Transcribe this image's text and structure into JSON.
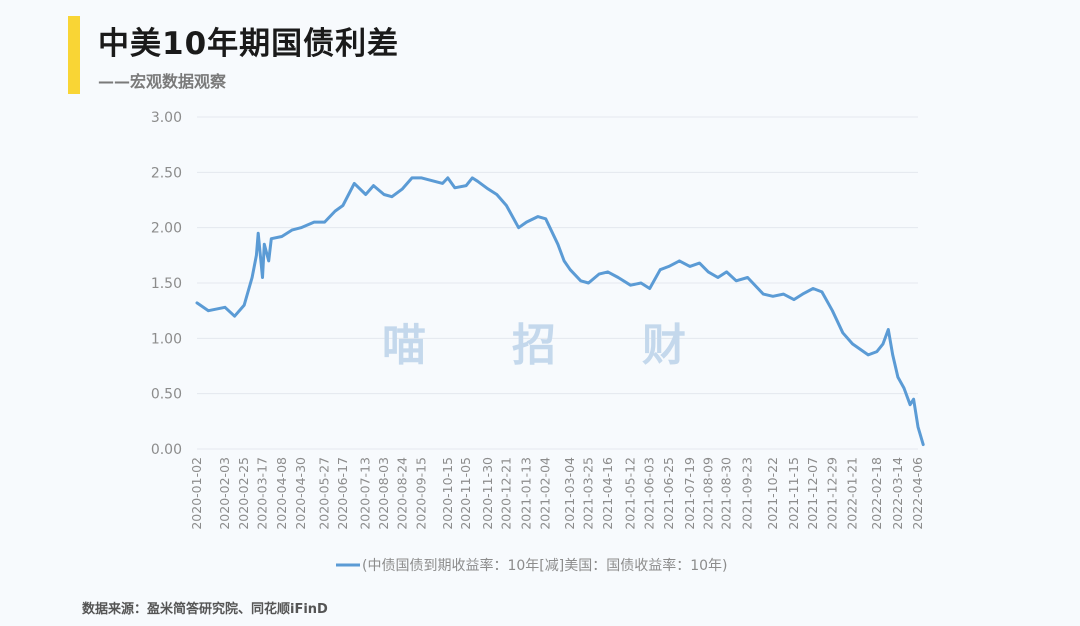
{
  "header": {
    "title": "中美10年期国债利差",
    "subtitle": "——宏观数据观察"
  },
  "watermark": [
    "喵",
    "招",
    "财"
  ],
  "footer": {
    "source": "数据来源：盈米简答研究院、同花顺iFinD"
  },
  "colors": {
    "accent": "#f9d535",
    "series": "#5b9bd5",
    "grid": "#e4e8ee",
    "watermark": "#c4d8ec"
  },
  "chart_data": {
    "type": "line",
    "title": "中美10年期国债利差",
    "ylim": [
      0,
      3
    ],
    "yticks": [
      "0.00",
      "0.50",
      "1.00",
      "1.50",
      "2.00",
      "2.50",
      "3.00"
    ],
    "xtick_labels": [
      "2020-01-02",
      "2020-02-03",
      "2020-02-25",
      "2020-03-17",
      "2020-04-08",
      "2020-04-30",
      "2020-05-27",
      "2020-06-17",
      "2020-07-13",
      "2020-08-03",
      "2020-08-24",
      "2020-09-15",
      "2020-10-15",
      "2020-11-05",
      "2020-11-30",
      "2020-12-21",
      "2021-01-13",
      "2021-02-04",
      "2021-03-04",
      "2021-03-25",
      "2021-04-16",
      "2021-05-12",
      "2021-06-03",
      "2021-06-25",
      "2021-07-19",
      "2021-08-09",
      "2021-08-30",
      "2021-09-23",
      "2021-10-22",
      "2021-11-15",
      "2021-12-07",
      "2021-12-29",
      "2022-01-21",
      "2022-02-18",
      "2022-03-14",
      "2022-04-06"
    ],
    "grid": true,
    "legend_position": "bottom-center",
    "series": [
      {
        "name": "(中债国债到期收益率：10年[减]美国：国债收益率：10年)",
        "color": "#5b9bd5",
        "x": [
          "2020-01-02",
          "2020-01-15",
          "2020-02-03",
          "2020-02-14",
          "2020-02-25",
          "2020-03-05",
          "2020-03-10",
          "2020-03-12",
          "2020-03-17",
          "2020-03-19",
          "2020-03-24",
          "2020-03-27",
          "2020-04-08",
          "2020-04-20",
          "2020-04-30",
          "2020-05-15",
          "2020-05-27",
          "2020-06-08",
          "2020-06-17",
          "2020-06-30",
          "2020-07-13",
          "2020-07-22",
          "2020-08-03",
          "2020-08-12",
          "2020-08-24",
          "2020-09-04",
          "2020-09-15",
          "2020-10-09",
          "2020-10-15",
          "2020-10-23",
          "2020-11-05",
          "2020-11-12",
          "2020-11-18",
          "2020-11-30",
          "2020-12-10",
          "2020-12-21",
          "2021-01-04",
          "2021-01-13",
          "2021-01-26",
          "2021-02-04",
          "2021-02-18",
          "2021-02-25",
          "2021-03-04",
          "2021-03-16",
          "2021-03-25",
          "2021-04-06",
          "2021-04-16",
          "2021-04-28",
          "2021-05-12",
          "2021-05-24",
          "2021-06-03",
          "2021-06-15",
          "2021-06-25",
          "2021-07-07",
          "2021-07-19",
          "2021-07-30",
          "2021-08-09",
          "2021-08-20",
          "2021-08-30",
          "2021-09-10",
          "2021-09-23",
          "2021-10-11",
          "2021-10-22",
          "2021-11-03",
          "2021-11-15",
          "2021-11-25",
          "2021-12-07",
          "2021-12-17",
          "2021-12-29",
          "2022-01-10",
          "2022-01-21",
          "2022-02-08",
          "2022-02-18",
          "2022-02-25",
          "2022-03-03",
          "2022-03-08",
          "2022-03-14",
          "2022-03-21",
          "2022-03-28",
          "2022-04-01",
          "2022-04-06",
          "2022-04-12"
        ],
        "values": [
          1.32,
          1.25,
          1.28,
          1.2,
          1.3,
          1.55,
          1.75,
          1.95,
          1.55,
          1.85,
          1.7,
          1.9,
          1.92,
          1.98,
          2.0,
          2.05,
          2.05,
          2.15,
          2.2,
          2.4,
          2.3,
          2.38,
          2.3,
          2.28,
          2.35,
          2.45,
          2.45,
          2.4,
          2.45,
          2.36,
          2.38,
          2.45,
          2.42,
          2.35,
          2.3,
          2.2,
          2.0,
          2.05,
          2.1,
          2.08,
          1.85,
          1.7,
          1.62,
          1.52,
          1.5,
          1.58,
          1.6,
          1.55,
          1.48,
          1.5,
          1.45,
          1.62,
          1.65,
          1.7,
          1.65,
          1.68,
          1.6,
          1.55,
          1.6,
          1.52,
          1.55,
          1.4,
          1.38,
          1.4,
          1.35,
          1.4,
          1.45,
          1.42,
          1.25,
          1.05,
          0.95,
          0.85,
          0.88,
          0.95,
          1.08,
          0.85,
          0.65,
          0.55,
          0.4,
          0.45,
          0.2,
          0.04
        ]
      }
    ]
  }
}
